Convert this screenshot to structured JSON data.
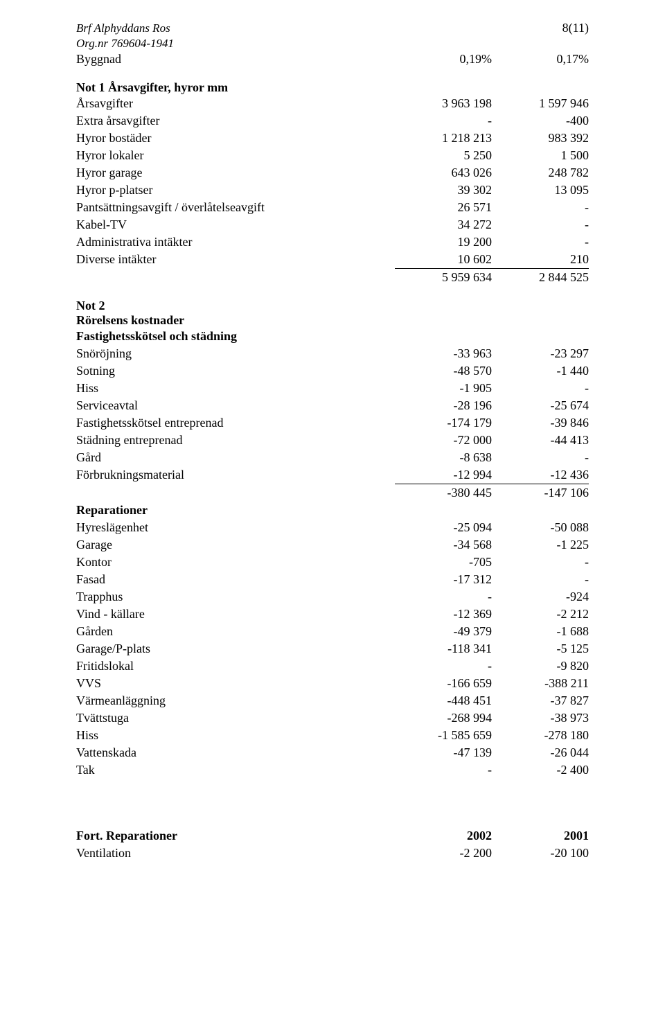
{
  "header": {
    "org_name": "Brf Alphyddans Ros",
    "org_nr": "Org.nr 769604-1941",
    "page_num": "8(11)"
  },
  "byggnad": {
    "label": "Byggnad",
    "c1": "0,19%",
    "c2": "0,17%"
  },
  "not1": {
    "title": "Not 1 Årsavgifter, hyror mm",
    "rows": [
      {
        "label": "Årsavgifter",
        "c1": "3 963 198",
        "c2": "1 597 946"
      },
      {
        "label": "Extra årsavgifter",
        "c1": "-",
        "c2": "-400"
      },
      {
        "label": "Hyror bostäder",
        "c1": "1 218 213",
        "c2": "983 392"
      },
      {
        "label": "Hyror lokaler",
        "c1": "5 250",
        "c2": "1 500"
      },
      {
        "label": "Hyror garage",
        "c1": "643 026",
        "c2": "248 782"
      },
      {
        "label": "Hyror p-platser",
        "c1": "39 302",
        "c2": "13 095"
      },
      {
        "label": "Pantsättningsavgift / överlåtelseavgift",
        "c1": "26 571",
        "c2": "-"
      },
      {
        "label": "Kabel-TV",
        "c1": "34 272",
        "c2": "-"
      },
      {
        "label": "Administrativa intäkter",
        "c1": "19 200",
        "c2": "-"
      },
      {
        "label": "Diverse intäkter",
        "c1": "10 602",
        "c2": "210"
      }
    ],
    "sum": {
      "c1": "5 959 634",
      "c2": "2 844 525"
    }
  },
  "not2": {
    "title": "Not 2",
    "subtitle": "Rörelsens kostnader",
    "groupA": {
      "heading": "Fastighetsskötsel och städning",
      "rows": [
        {
          "label": "Snöröjning",
          "c1": "-33 963",
          "c2": "-23 297"
        },
        {
          "label": "Sotning",
          "c1": "-48 570",
          "c2": "-1 440"
        },
        {
          "label": "Hiss",
          "c1": "-1 905",
          "c2": "-"
        },
        {
          "label": "Serviceavtal",
          "c1": "-28 196",
          "c2": "-25 674"
        },
        {
          "label": "Fastighetsskötsel entreprenad",
          "c1": "-174 179",
          "c2": "-39 846"
        },
        {
          "label": "Städning entreprenad",
          "c1": "-72 000",
          "c2": "-44 413"
        },
        {
          "label": "Gård",
          "c1": "-8 638",
          "c2": "-"
        },
        {
          "label": "Förbrukningsmaterial",
          "c1": "-12 994",
          "c2": "-12 436"
        }
      ],
      "sum": {
        "c1": "-380 445",
        "c2": "-147 106"
      }
    },
    "groupB": {
      "heading": "Reparationer",
      "rows": [
        {
          "label": "Hyreslägenhet",
          "c1": "-25 094",
          "c2": "-50 088"
        },
        {
          "label": "Garage",
          "c1": "-34 568",
          "c2": "-1 225"
        },
        {
          "label": "Kontor",
          "c1": "-705",
          "c2": "-"
        },
        {
          "label": "Fasad",
          "c1": "-17 312",
          "c2": "-"
        },
        {
          "label": "Trapphus",
          "c1": "-",
          "c2": "-924"
        },
        {
          "label": "Vind - källare",
          "c1": "-12 369",
          "c2": "-2 212"
        },
        {
          "label": "Gården",
          "c1": "-49 379",
          "c2": "-1 688"
        },
        {
          "label": "Garage/P-plats",
          "c1": "-118 341",
          "c2": "-5 125"
        },
        {
          "label": "Fritidslokal",
          "c1": "-",
          "c2": "-9 820"
        },
        {
          "label": "VVS",
          "c1": "-166 659",
          "c2": "-388 211"
        },
        {
          "label": "Värmeanläggning",
          "c1": "-448 451",
          "c2": "-37 827"
        },
        {
          "label": "Tvättstuga",
          "c1": "-268 994",
          "c2": "-38 973"
        },
        {
          "label": "Hiss",
          "c1": "-1 585 659",
          "c2": "-278 180"
        },
        {
          "label": "Vattenskada",
          "c1": "-47 139",
          "c2": "-26 044"
        },
        {
          "label": "Tak",
          "c1": "-",
          "c2": "-2 400"
        }
      ]
    }
  },
  "fort": {
    "heading": "Fort. Reparationer",
    "yr1": "2002",
    "yr2": "2001",
    "row": {
      "label": "Ventilation",
      "c1": "-2 200",
      "c2": "-20 100"
    }
  }
}
